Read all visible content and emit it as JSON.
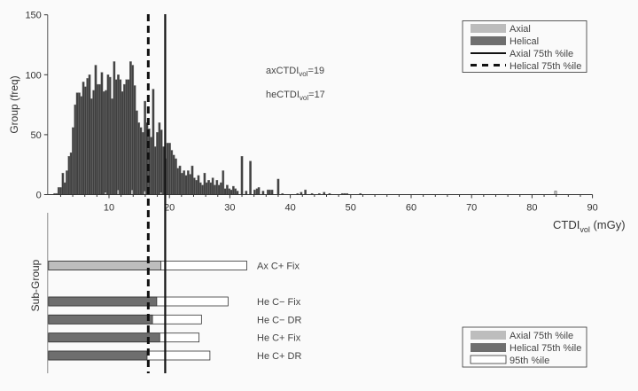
{
  "colors": {
    "background": "#fafafa",
    "helical_bar": "#404040",
    "axial_bar": "#bcbcbc",
    "helical_fill": "#6e6e6e",
    "axial_fill": "#bdbdbd",
    "p95_fill": "#ffffff",
    "line": "#111111"
  },
  "chart_data": [
    {
      "type": "bar",
      "title": "",
      "ylabel": "Group (freq)",
      "xlabel": {
        "main": "CTDI",
        "sub": "vol",
        "unit": " (mGy)"
      },
      "xlim": [
        0,
        90
      ],
      "ylim": [
        0,
        150
      ],
      "xticks": [
        10,
        20,
        30,
        40,
        50,
        60,
        70,
        80,
        90
      ],
      "yticks": [
        0,
        50,
        100,
        150
      ],
      "grid": false,
      "legend_position": "top-right",
      "legend": [
        "Axial",
        "Helical",
        "Axial 75th %ile",
        "Helical 75th %ile"
      ],
      "series": [
        {
          "name": "Helical",
          "x": [
            1.0,
            1.34,
            1.68,
            2.02,
            2.36,
            2.7,
            3.04,
            3.38,
            3.72,
            4.06,
            4.4,
            4.74,
            5.08,
            5.42,
            5.76,
            6.1,
            6.44,
            6.78,
            7.12,
            7.46,
            7.8,
            8.14,
            8.48,
            8.82,
            9.16,
            9.5,
            9.84,
            10.18,
            10.52,
            10.86,
            11.2,
            11.54,
            11.88,
            12.22,
            12.56,
            12.9,
            13.24,
            13.58,
            13.92,
            14.26,
            14.6,
            14.94,
            15.28,
            15.62,
            15.96,
            16.3,
            16.64,
            16.98,
            17.32,
            17.66,
            18.0,
            18.34,
            18.68,
            19.02,
            19.36,
            19.7,
            20.04,
            20.38,
            20.72,
            21.06,
            21.4,
            21.74,
            22.08,
            22.42,
            22.76,
            23.1,
            23.44,
            23.78,
            24.12,
            24.46,
            24.8,
            25.14,
            25.48,
            25.82,
            26.16,
            26.5,
            26.84,
            27.18,
            27.52,
            27.86,
            28.2,
            28.54,
            28.88,
            29.22,
            29.56,
            29.9,
            30.24,
            30.58,
            30.92,
            31.26,
            32.0,
            32.7,
            33.4,
            34.1,
            34.5,
            34.8,
            35.5,
            36.3,
            36.6,
            37.0,
            38.0,
            38.7,
            41.2,
            41.8,
            42.5,
            43.6,
            44.8,
            45.6,
            46.5,
            48.6,
            49.0,
            49.4,
            51.6
          ],
          "values": [
            1,
            1,
            6,
            6,
            18,
            10,
            20,
            32,
            35,
            56,
            75,
            85,
            85,
            82,
            94,
            90,
            97,
            100,
            80,
            87,
            108,
            92,
            92,
            102,
            86,
            87,
            100,
            98,
            80,
            111,
            96,
            100,
            96,
            86,
            92,
            96,
            96,
            111,
            108,
            91,
            70,
            60,
            56,
            52,
            78,
            60,
            55,
            48,
            88,
            40,
            52,
            60,
            54,
            40,
            30,
            43,
            43,
            37,
            33,
            30,
            22,
            24,
            18,
            20,
            16,
            20,
            17,
            24,
            14,
            12,
            16,
            10,
            8,
            18,
            10,
            12,
            10,
            14,
            8,
            12,
            8,
            10,
            20,
            5,
            8,
            5,
            4,
            7,
            5,
            3,
            32,
            3,
            28,
            4,
            5,
            6,
            3,
            4,
            4,
            4,
            13,
            1,
            1,
            2,
            4,
            1,
            1,
            2,
            1,
            1,
            1,
            1,
            1
          ]
        },
        {
          "name": "Axial",
          "x": [
            9.4,
            11.5,
            13.8,
            15.9,
            18.6,
            83.9
          ],
          "values": [
            2,
            4,
            4,
            3,
            2,
            3
          ]
        }
      ],
      "reference_lines": [
        {
          "name": "Axial 75th %ile",
          "x": 19.3,
          "style": "solid"
        },
        {
          "name": "Helical 75th %ile",
          "x": 16.5,
          "style": "dashed"
        }
      ],
      "annotations": [
        {
          "prefix": "axCTDI",
          "sub": "vol",
          "suffix": "=19"
        },
        {
          "prefix": "heCTDI",
          "sub": "vol",
          "suffix": "=17"
        }
      ]
    },
    {
      "type": "bar",
      "orientation": "horizontal",
      "ylabel": "Sub-Group",
      "xlim": [
        0,
        90
      ],
      "legend_position": "bottom-right",
      "legend": [
        "Axial 75th %ile",
        "Helical 75th %ile",
        "95th %ile"
      ],
      "categories": [
        "Ax C+ Fix",
        "",
        "He C− Fix",
        "He C− DR",
        "He C+ Fix",
        "He C+ DR"
      ],
      "groups": [
        "axial",
        "",
        "helical",
        "helical",
        "helical",
        "helical"
      ],
      "p75": [
        18.6,
        null,
        17.9,
        17.2,
        18.4,
        16.3
      ],
      "p95": [
        32.8,
        null,
        29.7,
        25.3,
        24.9,
        26.7
      ]
    }
  ]
}
